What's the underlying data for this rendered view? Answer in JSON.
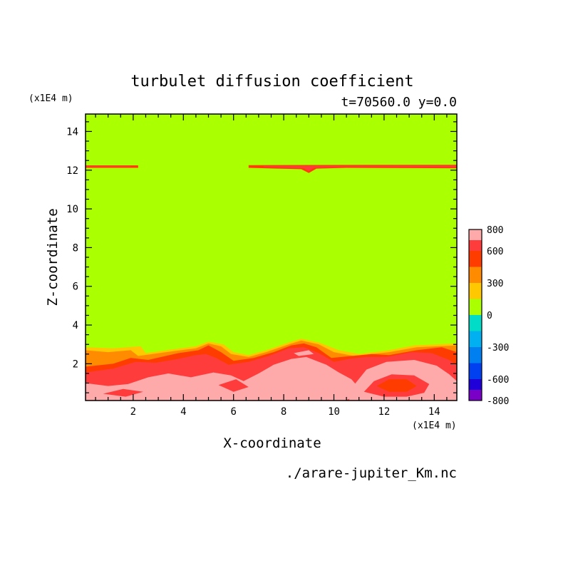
{
  "chart_data": {
    "type": "heatmap",
    "title": "turbulet diffusion coefficient",
    "subtitle": "t=70560.0 y=0.0",
    "xlabel": "X-coordinate",
    "ylabel": "Z-coordinate",
    "x_unit": "(x1E4 m)",
    "y_unit": "(x1E4 m)",
    "source_file": "./arare-jupiter_Km.nc",
    "xlim": [
      0.1,
      14.9
    ],
    "ylim": [
      0.1,
      14.9
    ],
    "x_ticks": [
      2,
      4,
      6,
      8,
      10,
      12,
      14
    ],
    "y_ticks": [
      2,
      4,
      6,
      8,
      10,
      12,
      14
    ],
    "colorbar": {
      "levels": [
        -800,
        -600,
        -300,
        0,
        300,
        600,
        800
      ],
      "tick_labels": [
        "800",
        "600",
        "300",
        "0",
        "-300",
        "-600",
        "-800"
      ],
      "bands": [
        {
          "from": -800,
          "to": -700,
          "color": "#7a00c8"
        },
        {
          "from": -700,
          "to": -600,
          "color": "#2000d8"
        },
        {
          "from": -600,
          "to": -450,
          "color": "#0040f0"
        },
        {
          "from": -450,
          "to": -300,
          "color": "#0080f0"
        },
        {
          "from": -300,
          "to": -150,
          "color": "#00b0f0"
        },
        {
          "from": -150,
          "to": 0,
          "color": "#00dcc8"
        },
        {
          "from": 0,
          "to": 150,
          "color": "#aaff00"
        },
        {
          "from": 150,
          "to": 300,
          "color": "#ffc800"
        },
        {
          "from": 300,
          "to": 450,
          "color": "#ff8c00"
        },
        {
          "from": 450,
          "to": 600,
          "color": "#ff3c00"
        },
        {
          "from": 600,
          "to": 700,
          "color": "#ff3c3c"
        },
        {
          "from": 700,
          "to": 800,
          "color": "#ffaaaa"
        }
      ]
    },
    "background_value": 75,
    "regions": [
      {
        "value": 525,
        "color": "#ff3c00",
        "points": [
          [
            0.1,
            12.25
          ],
          [
            2.2,
            12.25
          ],
          [
            2.2,
            12.12
          ],
          [
            0.1,
            12.12
          ]
        ]
      },
      {
        "value": 650,
        "color": "#ff3c3c",
        "points": [
          [
            0.1,
            12.22
          ],
          [
            1.9,
            12.22
          ],
          [
            1.9,
            12.16
          ],
          [
            0.1,
            12.16
          ]
        ]
      },
      {
        "value": 525,
        "color": "#ff3c00",
        "points": [
          [
            6.6,
            12.26
          ],
          [
            14.9,
            12.28
          ],
          [
            14.9,
            12.1
          ],
          [
            10.5,
            12.12
          ],
          [
            9.3,
            12.08
          ],
          [
            9.0,
            11.85
          ],
          [
            8.7,
            12.05
          ],
          [
            6.6,
            12.12
          ]
        ]
      },
      {
        "value": 650,
        "color": "#ff3c3c",
        "points": [
          [
            7.2,
            12.22
          ],
          [
            14.9,
            12.24
          ],
          [
            14.9,
            12.15
          ],
          [
            10.5,
            12.16
          ],
          [
            9.2,
            12.12
          ],
          [
            9.0,
            11.95
          ],
          [
            8.8,
            12.1
          ],
          [
            7.2,
            12.16
          ]
        ]
      },
      {
        "value": 225,
        "color": "#ffc800",
        "points": [
          [
            0.1,
            2.85
          ],
          [
            1.2,
            2.8
          ],
          [
            2.3,
            2.9
          ],
          [
            2.5,
            2.55
          ],
          [
            3.6,
            2.75
          ],
          [
            4.5,
            2.9
          ],
          [
            5.0,
            3.15
          ],
          [
            5.6,
            3.0
          ],
          [
            6.0,
            2.6
          ],
          [
            6.6,
            2.45
          ],
          [
            7.3,
            2.7
          ],
          [
            8.2,
            3.1
          ],
          [
            8.7,
            3.3
          ],
          [
            9.4,
            3.1
          ],
          [
            10.2,
            2.7
          ],
          [
            11.0,
            2.5
          ],
          [
            12.2,
            2.7
          ],
          [
            13.2,
            2.95
          ],
          [
            14.9,
            3.05
          ],
          [
            14.9,
            0.1
          ],
          [
            0.1,
            0.1
          ]
        ]
      },
      {
        "value": 375,
        "color": "#ff8c00",
        "points": [
          [
            0.1,
            2.7
          ],
          [
            1.0,
            2.6
          ],
          [
            1.9,
            2.7
          ],
          [
            2.2,
            2.4
          ],
          [
            3.6,
            2.65
          ],
          [
            4.5,
            2.8
          ],
          [
            5.0,
            3.05
          ],
          [
            5.5,
            2.9
          ],
          [
            5.9,
            2.5
          ],
          [
            6.6,
            2.35
          ],
          [
            7.3,
            2.6
          ],
          [
            8.2,
            3.0
          ],
          [
            8.7,
            3.2
          ],
          [
            9.4,
            3.0
          ],
          [
            10.0,
            2.6
          ],
          [
            10.8,
            2.4
          ],
          [
            12.2,
            2.6
          ],
          [
            13.3,
            2.85
          ],
          [
            14.9,
            2.95
          ],
          [
            14.9,
            0.1
          ],
          [
            0.1,
            0.1
          ]
        ]
      },
      {
        "value": 525,
        "color": "#ff3c00",
        "points": [
          [
            0.1,
            1.85
          ],
          [
            1.2,
            2.0
          ],
          [
            1.9,
            2.3
          ],
          [
            2.6,
            2.2
          ],
          [
            3.8,
            2.55
          ],
          [
            4.6,
            2.7
          ],
          [
            5.0,
            2.95
          ],
          [
            5.5,
            2.6
          ],
          [
            6.0,
            2.15
          ],
          [
            6.8,
            2.3
          ],
          [
            7.6,
            2.6
          ],
          [
            8.3,
            2.95
          ],
          [
            8.8,
            3.05
          ],
          [
            9.3,
            2.85
          ],
          [
            9.9,
            2.3
          ],
          [
            10.7,
            2.4
          ],
          [
            11.5,
            2.5
          ],
          [
            12.2,
            2.45
          ],
          [
            13.3,
            2.7
          ],
          [
            14.3,
            2.85
          ],
          [
            14.9,
            2.6
          ],
          [
            14.9,
            0.1
          ],
          [
            0.1,
            0.1
          ]
        ]
      },
      {
        "value": 650,
        "color": "#ff3c3c",
        "points": [
          [
            0.1,
            1.55
          ],
          [
            1.2,
            1.75
          ],
          [
            2.1,
            2.1
          ],
          [
            2.9,
            2.05
          ],
          [
            3.8,
            2.25
          ],
          [
            4.5,
            2.45
          ],
          [
            4.9,
            2.5
          ],
          [
            5.3,
            2.3
          ],
          [
            5.8,
            1.95
          ],
          [
            6.6,
            2.1
          ],
          [
            7.4,
            2.4
          ],
          [
            8.2,
            2.8
          ],
          [
            8.8,
            2.85
          ],
          [
            9.4,
            2.55
          ],
          [
            10.0,
            2.1
          ],
          [
            10.6,
            2.25
          ],
          [
            11.3,
            2.35
          ],
          [
            12.1,
            2.35
          ],
          [
            13.1,
            2.6
          ],
          [
            13.9,
            2.55
          ],
          [
            14.6,
            2.2
          ],
          [
            14.9,
            1.9
          ],
          [
            14.9,
            0.1
          ],
          [
            0.1,
            0.1
          ]
        ]
      },
      {
        "value": 750,
        "color": "#ffaaaa",
        "points": [
          [
            0.1,
            1.0
          ],
          [
            1.0,
            0.85
          ],
          [
            1.8,
            0.95
          ],
          [
            2.6,
            1.3
          ],
          [
            3.4,
            1.5
          ],
          [
            4.3,
            1.3
          ],
          [
            5.2,
            1.55
          ],
          [
            5.9,
            1.4
          ],
          [
            6.4,
            1.1
          ],
          [
            7.0,
            1.5
          ],
          [
            7.6,
            1.95
          ],
          [
            8.3,
            2.25
          ],
          [
            8.9,
            2.35
          ],
          [
            9.7,
            1.95
          ],
          [
            10.2,
            1.55
          ],
          [
            10.7,
            1.2
          ],
          [
            11.1,
            0.6
          ],
          [
            10.8,
            0.25
          ],
          [
            10.4,
            0.1
          ],
          [
            0.1,
            0.1
          ]
        ]
      },
      {
        "value": 750,
        "color": "#ffaaaa",
        "points": [
          [
            10.6,
            0.1
          ],
          [
            10.8,
            0.9
          ],
          [
            11.3,
            1.7
          ],
          [
            12.1,
            2.1
          ],
          [
            13.2,
            2.2
          ],
          [
            14.1,
            1.9
          ],
          [
            14.6,
            1.45
          ],
          [
            14.9,
            1.1
          ],
          [
            14.9,
            0.1
          ]
        ]
      },
      {
        "value": 650,
        "color": "#ff3c3c",
        "points": [
          [
            11.2,
            0.55
          ],
          [
            11.6,
            1.1
          ],
          [
            12.3,
            1.45
          ],
          [
            13.2,
            1.4
          ],
          [
            13.8,
            0.95
          ],
          [
            13.6,
            0.5
          ],
          [
            12.9,
            0.3
          ],
          [
            12.0,
            0.3
          ]
        ]
      },
      {
        "value": 525,
        "color": "#ff3c00",
        "points": [
          [
            11.7,
            0.85
          ],
          [
            12.2,
            1.2
          ],
          [
            12.9,
            1.2
          ],
          [
            13.3,
            0.85
          ],
          [
            12.9,
            0.55
          ],
          [
            12.2,
            0.55
          ]
        ]
      },
      {
        "value": 650,
        "color": "#ff3c3c",
        "points": [
          [
            0.8,
            0.45
          ],
          [
            1.6,
            0.7
          ],
          [
            2.4,
            0.55
          ],
          [
            1.7,
            0.3
          ]
        ]
      },
      {
        "value": 650,
        "color": "#ff3c3c",
        "points": [
          [
            5.4,
            0.9
          ],
          [
            6.1,
            1.2
          ],
          [
            6.6,
            0.8
          ],
          [
            6.0,
            0.55
          ]
        ]
      },
      {
        "value": 750,
        "color": "#ffaaaa",
        "points": [
          [
            8.4,
            2.55
          ],
          [
            9.0,
            2.7
          ],
          [
            9.2,
            2.5
          ],
          [
            8.6,
            2.4
          ]
        ]
      }
    ]
  }
}
